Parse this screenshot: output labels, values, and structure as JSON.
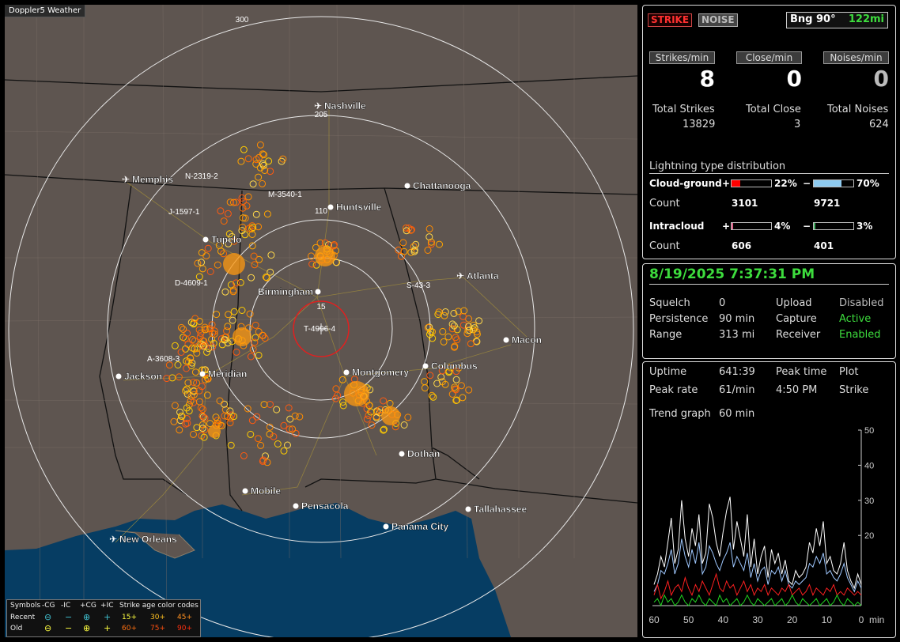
{
  "app_title": "Doppler5 Weather",
  "top": {
    "strike_btn": "STRIKE",
    "noise_btn": "NOISE",
    "bearing": "Bng 90°",
    "distance": "122mi"
  },
  "rates": {
    "strikes_label": "Strikes/min",
    "close_label": "Close/min",
    "noises_label": "Noises/min",
    "strikes": "8",
    "close": "0",
    "noises": "0"
  },
  "totals": {
    "strikes_label": "Total Strikes",
    "close_label": "Total Close",
    "noises_label": "Total Noises",
    "strikes": "13829",
    "close": "3",
    "noises": "624"
  },
  "distribution": {
    "title": "Lightning type distribution",
    "cg_label": "Cloud-ground",
    "ic_label": "Intracloud",
    "count_label": "Count",
    "plus": "+",
    "minus": "−",
    "cg_pos_pct": "22%",
    "cg_neg_pct": "70%",
    "cg_pos_count": "3101",
    "cg_neg_count": "9721",
    "ic_pos_pct": "4%",
    "ic_neg_pct": "3%",
    "ic_pos_count": "606",
    "ic_neg_count": "401",
    "cg_pos_fill": 0.22,
    "cg_neg_fill": 0.7,
    "ic_pos_fill": 0.04,
    "ic_neg_fill": 0.03,
    "cg_pos_color": "#ff0000",
    "cg_neg_color": "#8ecbf0",
    "ic_pos_color": "#e0608a",
    "ic_neg_color": "#40b060"
  },
  "status": {
    "datetime": "8/19/2025 7:37:31 PM",
    "squelch_label": "Squelch",
    "squelch": "0",
    "persistence_label": "Persistence",
    "persistence": "90 min",
    "range_label": "Range",
    "range": "313 mi",
    "upload_label": "Upload",
    "upload": "Disabled",
    "capture_label": "Capture",
    "capture": "Active",
    "receiver_label": "Receiver",
    "receiver": "Enabled"
  },
  "stats": {
    "uptime_label": "Uptime",
    "uptime": "641:39",
    "peak_time_label": "Peak time",
    "peak_time": "4:50 PM",
    "plot_label": "Plot",
    "plot": "Strike",
    "peak_rate_label": "Peak rate",
    "peak_rate": "61/min",
    "trend_label": "Trend graph",
    "trend": "60 min"
  },
  "chart_data": {
    "type": "line",
    "x_ticks": [
      "60",
      "50",
      "40",
      "30",
      "20",
      "10",
      "0"
    ],
    "x_unit": "min",
    "y_ticks": [
      "50",
      "40",
      "30",
      "20"
    ],
    "ylim": [
      0,
      50
    ],
    "xlim": [
      60,
      0
    ],
    "series": [
      {
        "color": "#ffffff",
        "values": [
          6,
          9,
          14,
          11,
          18,
          25,
          12,
          16,
          30,
          19,
          14,
          22,
          17,
          26,
          12,
          15,
          29,
          25,
          18,
          14,
          21,
          27,
          31,
          16,
          24,
          19,
          14,
          26,
          11,
          19,
          9,
          14,
          17,
          8,
          16,
          12,
          15,
          9,
          13,
          7,
          6,
          10,
          8,
          9,
          11,
          18,
          15,
          22,
          17,
          24,
          12,
          14,
          10,
          9,
          12,
          18,
          10,
          7,
          5,
          9,
          6
        ]
      },
      {
        "color": "#9fc8ff",
        "values": [
          4,
          6,
          10,
          9,
          12,
          16,
          9,
          12,
          19,
          14,
          11,
          16,
          12,
          18,
          9,
          11,
          17,
          15,
          12,
          10,
          13,
          15,
          18,
          11,
          14,
          12,
          10,
          15,
          8,
          12,
          7,
          10,
          11,
          6,
          10,
          9,
          11,
          7,
          10,
          6,
          5,
          7,
          6,
          7,
          8,
          12,
          11,
          14,
          12,
          15,
          9,
          10,
          8,
          7,
          9,
          12,
          8,
          6,
          4,
          7,
          5
        ]
      },
      {
        "color": "#ff2020",
        "values": [
          3,
          6,
          2,
          4,
          7,
          3,
          5,
          6,
          4,
          8,
          5,
          3,
          6,
          4,
          7,
          5,
          3,
          6,
          9,
          5,
          4,
          7,
          5,
          6,
          3,
          5,
          7,
          4,
          6,
          3,
          5,
          4,
          6,
          3,
          5,
          4,
          3,
          5,
          4,
          6,
          3,
          4,
          5,
          3,
          4,
          6,
          3,
          5,
          4,
          3,
          5,
          4,
          6,
          3,
          4,
          3,
          5,
          4,
          3,
          4,
          3
        ]
      },
      {
        "color": "#20d020",
        "values": [
          1,
          2,
          0,
          3,
          1,
          2,
          0,
          1,
          3,
          1,
          0,
          2,
          1,
          3,
          1,
          0,
          2,
          1,
          0,
          3,
          1,
          2,
          0,
          1,
          2,
          0,
          1,
          3,
          1,
          0,
          2,
          1,
          0,
          1,
          2,
          0,
          1,
          2,
          0,
          1,
          3,
          1,
          0,
          2,
          1,
          0,
          1,
          2,
          0,
          1,
          2,
          0,
          1,
          3,
          1,
          0,
          2,
          1,
          0,
          1,
          0
        ]
      }
    ]
  },
  "map": {
    "labels": {
      "ring_300": "300",
      "ring_205": "205",
      "ring_110": "110",
      "ring_15": "15",
      "tag_n": "N-2319-2",
      "tag_m": "M-3540-1",
      "tag_j": "J-1597-1",
      "tag_d": "D-4609-1",
      "tag_s": "S-43-3",
      "tag_t": "T-4996-4",
      "tag_a": "A-3608-3"
    },
    "cities": [
      {
        "name": "Nashville",
        "kind": "airport"
      },
      {
        "name": "Memphis",
        "kind": "airport"
      },
      {
        "name": "Atlanta",
        "kind": "airport"
      },
      {
        "name": "New Orleans",
        "kind": "airport"
      },
      {
        "name": "Chattanooga",
        "kind": "dot"
      },
      {
        "name": "Huntsville",
        "kind": "dot"
      },
      {
        "name": "Tupelo",
        "kind": "dot"
      },
      {
        "name": "Birmingham",
        "kind": "dot"
      },
      {
        "name": "Macon",
        "kind": "dot"
      },
      {
        "name": "Jackson",
        "kind": "dot"
      },
      {
        "name": "Meridian",
        "kind": "dot"
      },
      {
        "name": "Montgomery",
        "kind": "dot"
      },
      {
        "name": "Columbus",
        "kind": "dot"
      },
      {
        "name": "Dothan",
        "kind": "dot"
      },
      {
        "name": "Mobile",
        "kind": "dot"
      },
      {
        "name": "Pensacola",
        "kind": "dot"
      },
      {
        "name": "Tallahassee",
        "kind": "dot"
      },
      {
        "name": "Panama City",
        "kind": "dot"
      }
    ]
  },
  "legend": {
    "symbols": "Symbols",
    "neg_cg": "-CG",
    "neg_ic": "-IC",
    "pos_cg": "+CG",
    "pos_ic": "+IC",
    "age_title": "Strike age color codes",
    "recent": "Recent",
    "old": "Old",
    "a15": "15+",
    "a30": "30+",
    "a45": "45+",
    "a60": "60+",
    "a75": "75+",
    "a90": "90+"
  }
}
